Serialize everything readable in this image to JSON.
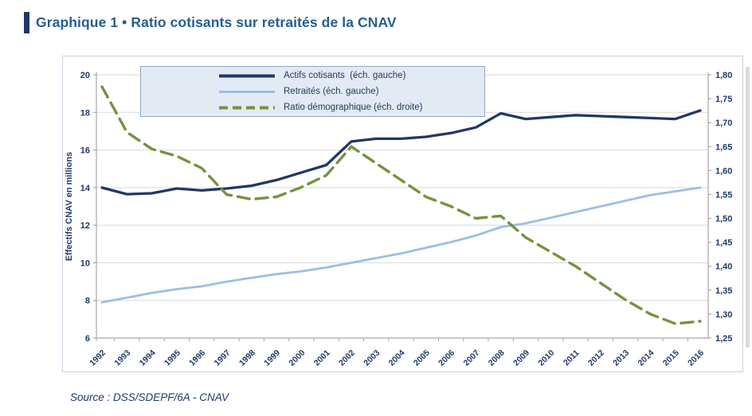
{
  "title": {
    "label": "Graphique 1 • Ratio cotisants sur retraités de la CNAV"
  },
  "source": "Source : DSS/SDEPF/6A - CNAV",
  "colors": {
    "accent_bar": "#1F3864",
    "title_text": "#255E91",
    "axis_text": "#203A66",
    "gridline": "#D9D9D9",
    "axis_line": "#A6A6A6",
    "legend_bg": "#E3EAF4",
    "legend_border": "#8EA9C8"
  },
  "chart_data": {
    "type": "line",
    "title": "Graphique 1 • Ratio cotisants sur retraités de la CNAV",
    "x": [
      "1992",
      "1993",
      "1994",
      "1995",
      "1996",
      "1997",
      "1998",
      "1999",
      "2000",
      "2001",
      "2002",
      "2003",
      "2004",
      "2005",
      "2006",
      "2007",
      "2008",
      "2009",
      "2010",
      "2011",
      "2012",
      "2013",
      "2014",
      "2015",
      "2016"
    ],
    "series": [
      {
        "key": "actifs-cotisants",
        "name": "Actifs cotisants  (éch. gauche)",
        "axis": "left",
        "color": "#1F3864",
        "dashed": false,
        "width": 3.3,
        "values": [
          14.0,
          13.65,
          13.7,
          13.95,
          13.85,
          13.95,
          14.1,
          14.4,
          14.8,
          15.2,
          16.45,
          16.6,
          16.6,
          16.7,
          16.9,
          17.2,
          17.95,
          17.65,
          17.75,
          17.85,
          17.8,
          17.75,
          17.7,
          17.65,
          18.1
        ]
      },
      {
        "key": "retraites",
        "name": "Retraités (éch. gauche)",
        "axis": "left",
        "color": "#9CBEE3",
        "dashed": false,
        "width": 2.8,
        "values": [
          7.9,
          8.15,
          8.4,
          8.6,
          8.75,
          9.0,
          9.2,
          9.4,
          9.55,
          9.75,
          10.0,
          10.25,
          10.5,
          10.8,
          11.1,
          11.45,
          11.9,
          12.1,
          12.4,
          12.7,
          13.0,
          13.3,
          13.6,
          13.8,
          14.0
        ]
      },
      {
        "key": "ratio-demographique",
        "name": "Ratio démographique (éch. droite)",
        "axis": "right",
        "color": "#76923C",
        "dashed": true,
        "width": 3.4,
        "values": [
          1.775,
          1.68,
          1.645,
          1.63,
          1.605,
          1.55,
          1.54,
          1.545,
          1.565,
          1.59,
          1.65,
          1.615,
          1.58,
          1.545,
          1.525,
          1.5,
          1.505,
          1.46,
          1.43,
          1.4,
          1.365,
          1.33,
          1.3,
          1.28,
          1.285
        ]
      }
    ],
    "left_axis": {
      "label": "Effectifs CNAV en millions",
      "min": 6,
      "max": 20,
      "step": 2,
      "ticks": [
        "6",
        "8",
        "10",
        "12",
        "14",
        "16",
        "18",
        "20"
      ]
    },
    "right_axis": {
      "label": "",
      "min": 1.25,
      "max": 1.8,
      "step": 0.05,
      "ticks": [
        "1,25",
        "1,30",
        "1,35",
        "1,40",
        "1,45",
        "1,50",
        "1,55",
        "1,60",
        "1,65",
        "1,70",
        "1,75",
        "1,80"
      ]
    },
    "grid": true,
    "legend_position": "top"
  }
}
